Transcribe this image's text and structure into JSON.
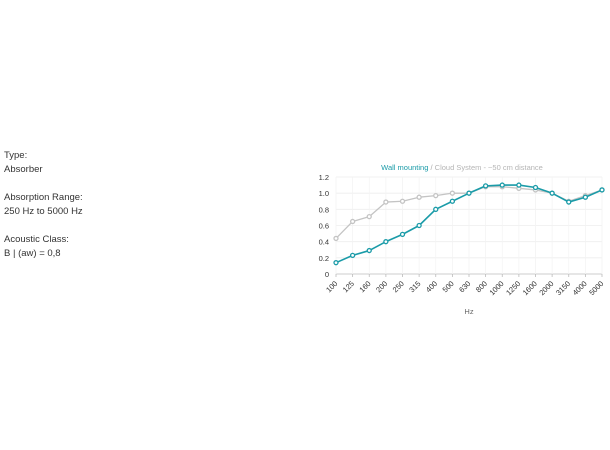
{
  "specs": [
    {
      "label": "Type:",
      "value": "Absorber"
    },
    {
      "label": "Absorption Range:",
      "value": "250 Hz to 5000 Hz"
    },
    {
      "label": "Acoustic Class:",
      "value": "B | (aw) = 0,8"
    }
  ],
  "chart_data": {
    "type": "line",
    "title_parts": [
      {
        "text": "Wall mounting",
        "color": "#1a9ba8"
      },
      {
        "text": " / ",
        "color": "#aaaaaa"
      },
      {
        "text": "Cloud System - ~50 cm distance",
        "color": "#b5b5b5"
      }
    ],
    "xlabel": "Hz",
    "ylabel": "",
    "ylim": [
      0,
      1.2
    ],
    "yticks": [
      "0",
      "0.2",
      "0.4",
      "0.6",
      "0.8",
      "1.0",
      "1.2"
    ],
    "categories": [
      "100",
      "125",
      "160",
      "200",
      "250",
      "315",
      "400",
      "500",
      "630",
      "800",
      "1000",
      "1250",
      "1600",
      "2000",
      "3150",
      "4000",
      "5000"
    ],
    "grid": true,
    "series": [
      {
        "name": "Cloud System - ~50 cm distance",
        "color": "#c4c4c4",
        "values": [
          0.44,
          0.65,
          0.71,
          0.89,
          0.9,
          0.95,
          0.97,
          1.0,
          1.0,
          1.08,
          1.08,
          1.06,
          1.04,
          1.0,
          0.9,
          0.97,
          1.04
        ]
      },
      {
        "name": "Wall mounting",
        "color": "#1a9ba8",
        "values": [
          0.14,
          0.23,
          0.29,
          0.4,
          0.49,
          0.6,
          0.8,
          0.9,
          1.0,
          1.09,
          1.1,
          1.1,
          1.07,
          1.0,
          0.89,
          0.95,
          1.04
        ]
      }
    ]
  }
}
